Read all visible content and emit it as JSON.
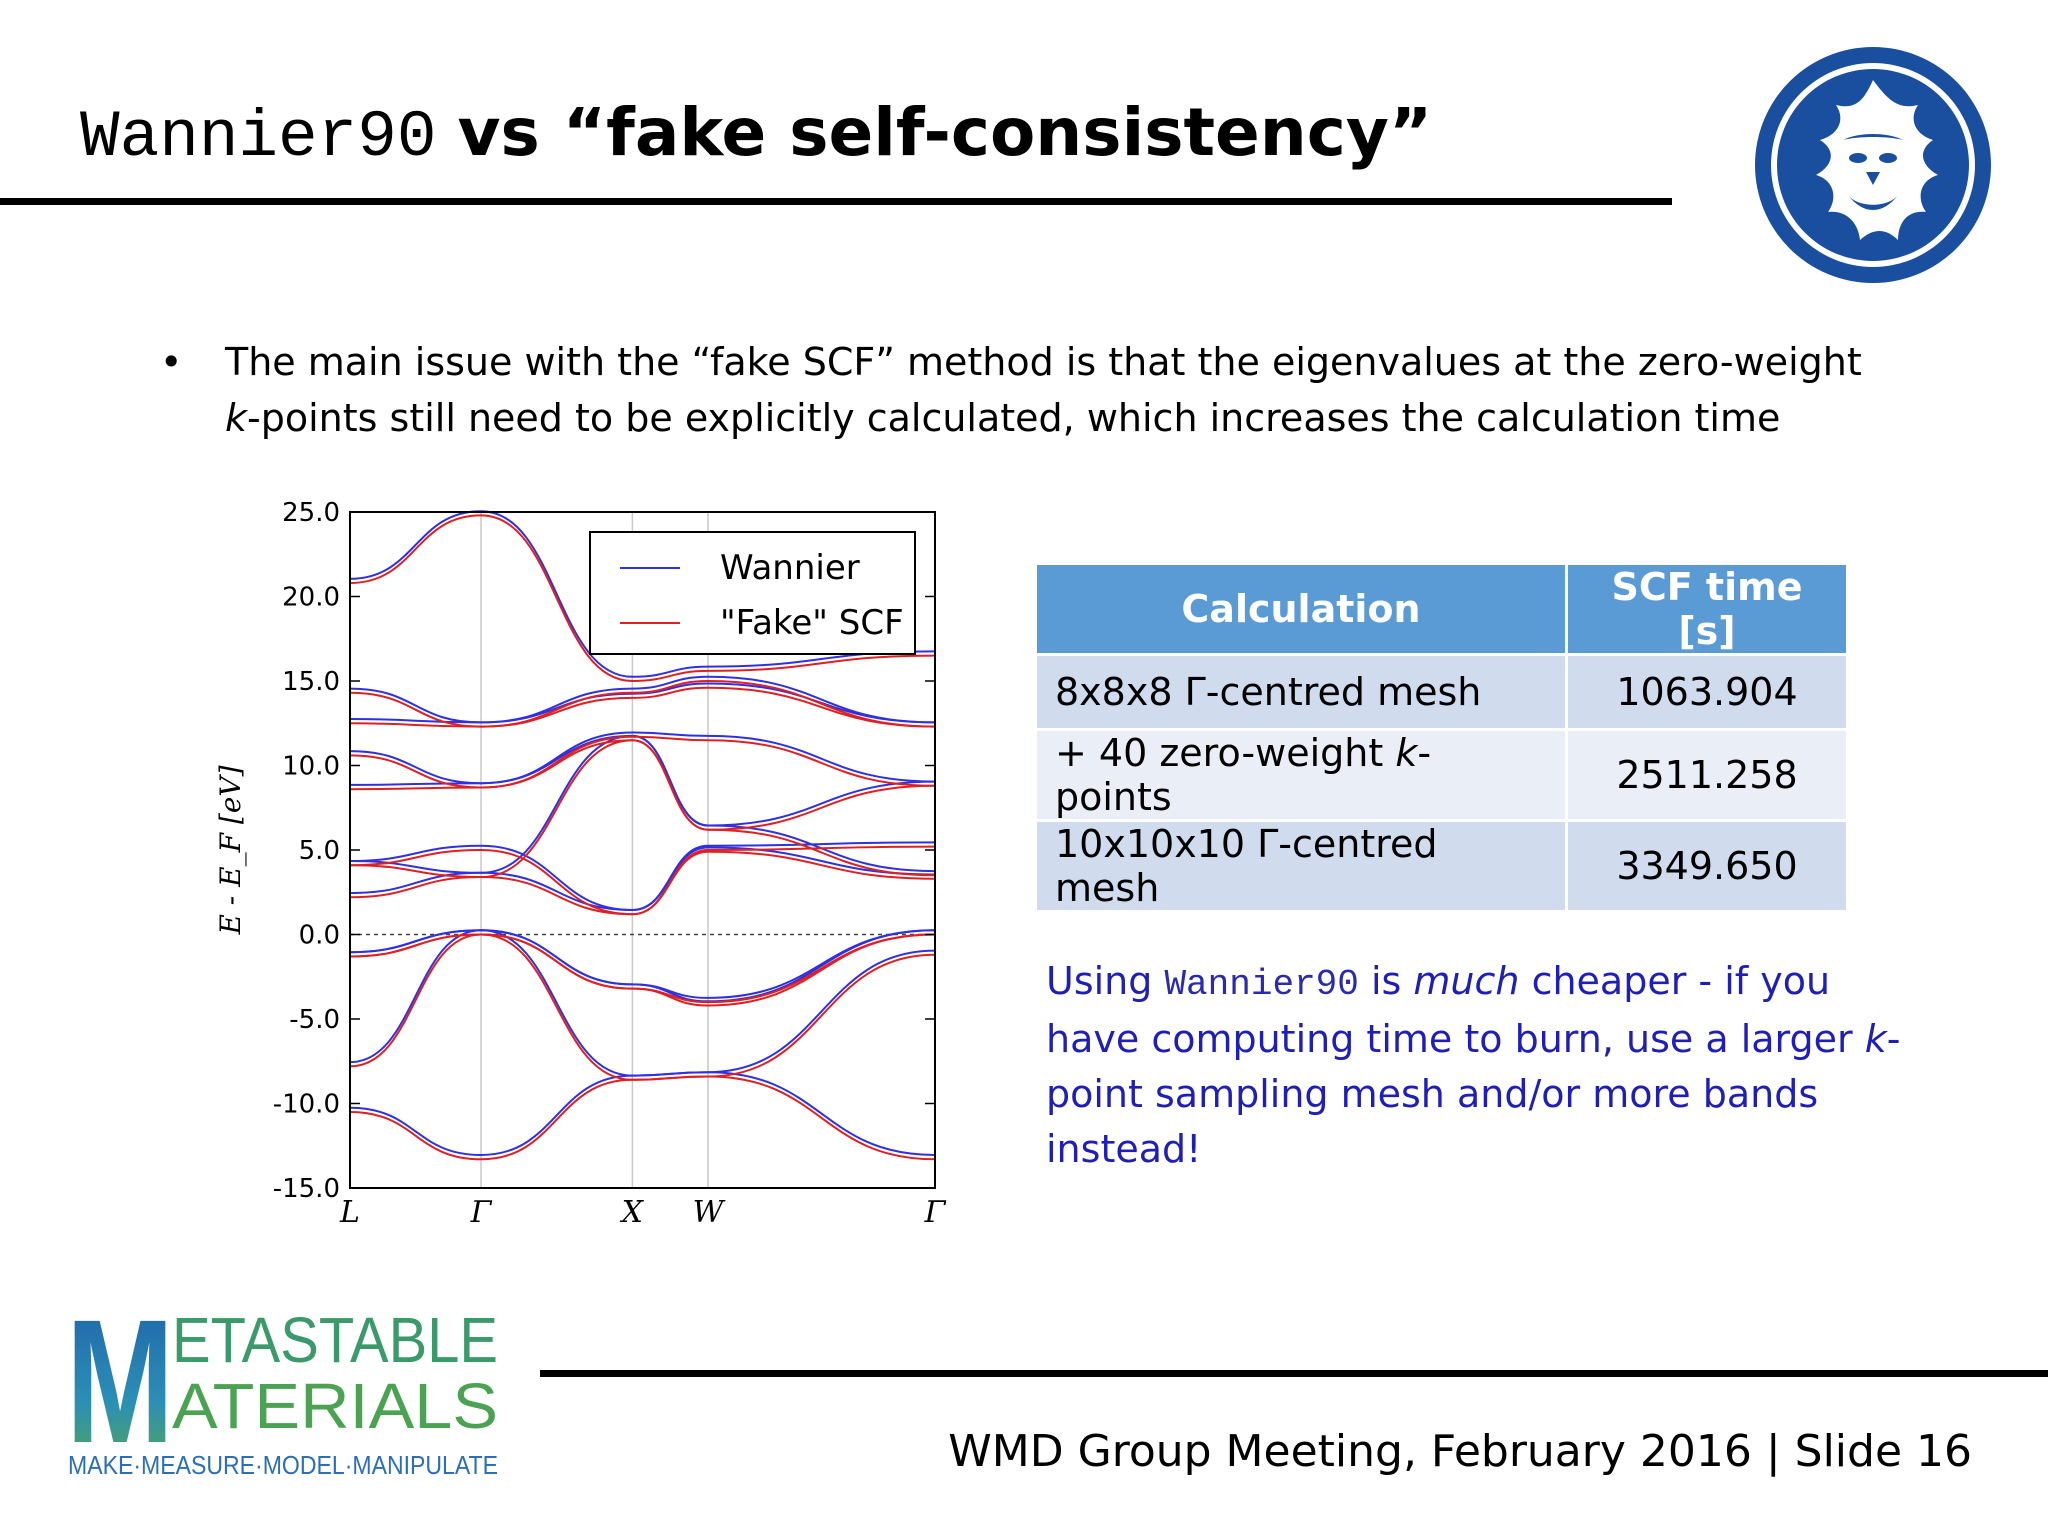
{
  "slide": {
    "title_mono": "Wannier90",
    "title_bold": "vs “fake self-consistency”",
    "bullet_symbol": "•",
    "bullet_text_1": "The main issue with the “fake SCF” method is that the eigenvalues at the zero-weight ",
    "bullet_text_k": "k",
    "bullet_text_2": "-points still need to be explicitly calculated, which increases the calculation time"
  },
  "table": {
    "headers": [
      "Calculation",
      "SCF time [s]"
    ],
    "rows": [
      {
        "calc": "8x8x8 Γ-centred mesh",
        "time": "1063.904"
      },
      {
        "calc_prefix": "+ 40 zero-weight ",
        "calc_k": "k",
        "calc_suffix": "-points",
        "time": "2511.258"
      },
      {
        "calc": "10x10x10 Γ-centred mesh",
        "time": "3349.650"
      }
    ]
  },
  "note": {
    "part1": "Using ",
    "mono": "Wannier90",
    "part2": " is ",
    "italic": "much",
    "part3": " cheaper - if you have computing time to burn, use a larger ",
    "k": "k",
    "part4": "-point sampling mesh and/or more bands instead!"
  },
  "footer": {
    "text": "WMD Group Meeting, February 2016 | Slide 16"
  },
  "logo": {
    "line1": "ETASTABLE",
    "line2": "ATERIALS",
    "big_letter": "M",
    "tagline": "MAKE·MEASURE·MODEL·MANIPULATE"
  },
  "colors": {
    "wannier": "#3030e0",
    "fake_scf": "#e02020",
    "table_header": "#5b9bd5",
    "note_text": "#1f1fb8"
  },
  "chart_data": {
    "type": "line",
    "title": "",
    "xlabel": "",
    "ylabel": "E - E_F [eV]",
    "ylim": [
      -15.0,
      25.0
    ],
    "yticks": [
      "25.0",
      "20.0",
      "15.0",
      "10.0",
      "5.0",
      "0.0",
      "-5.0",
      "-10.0",
      "-15.0"
    ],
    "ytick_values": [
      25,
      20,
      15,
      10,
      5,
      0,
      -5,
      -10,
      -15
    ],
    "xticks": [
      "L",
      "Γ",
      "X",
      "W",
      "Γ"
    ],
    "xtick_positions": [
      0,
      0.866,
      1.866,
      2.366,
      3.866
    ],
    "xlim": [
      0,
      3.866
    ],
    "legend": [
      {
        "name": "Wannier",
        "color": "#3030e0"
      },
      {
        "name": "\"Fake\" SCF",
        "color": "#e02020"
      }
    ],
    "legend_position": "top-right",
    "fermi_level": 0.0,
    "series": [
      {
        "name": "band1",
        "points": [
          [
            0,
            -10.5
          ],
          [
            0.866,
            -13.3
          ],
          [
            1.866,
            -8.6
          ],
          [
            2.366,
            -8.4
          ],
          [
            3.866,
            -13.3
          ]
        ]
      },
      {
        "name": "band2",
        "points": [
          [
            0,
            -7.8
          ],
          [
            0.866,
            0.0
          ],
          [
            1.866,
            -3.2
          ],
          [
            2.366,
            -4.2
          ],
          [
            3.866,
            0.0
          ]
        ]
      },
      {
        "name": "band3",
        "points": [
          [
            0,
            -1.3
          ],
          [
            0.866,
            0.0
          ],
          [
            1.866,
            -8.6
          ],
          [
            2.366,
            -8.4
          ],
          [
            3.866,
            -1.2
          ]
        ]
      },
      {
        "name": "band4",
        "points": [
          [
            0,
            -1.3
          ],
          [
            0.866,
            0.0
          ],
          [
            1.866,
            -3.2
          ],
          [
            2.366,
            -4.0
          ],
          [
            3.866,
            0.0
          ]
        ]
      },
      {
        "name": "band5",
        "points": [
          [
            0,
            2.2
          ],
          [
            0.866,
            3.4
          ],
          [
            1.866,
            1.2
          ],
          [
            2.366,
            4.9
          ],
          [
            3.866,
            3.3
          ]
        ]
      },
      {
        "name": "band6",
        "points": [
          [
            0,
            4.1
          ],
          [
            0.866,
            3.4
          ],
          [
            1.866,
            11.5
          ],
          [
            2.366,
            6.2
          ],
          [
            3.866,
            3.5
          ]
        ]
      },
      {
        "name": "band7",
        "points": [
          [
            0,
            4.1
          ],
          [
            0.866,
            5.0
          ],
          [
            1.866,
            1.2
          ],
          [
            2.366,
            5.0
          ],
          [
            3.866,
            5.2
          ]
        ]
      },
      {
        "name": "band8",
        "points": [
          [
            0,
            8.6
          ],
          [
            0.866,
            8.7
          ],
          [
            1.866,
            11.5
          ],
          [
            2.366,
            6.2
          ],
          [
            3.866,
            8.8
          ]
        ]
      },
      {
        "name": "band9",
        "points": [
          [
            0,
            10.6
          ],
          [
            0.866,
            8.7
          ],
          [
            1.866,
            11.7
          ],
          [
            2.366,
            11.5
          ],
          [
            3.866,
            8.8
          ]
        ]
      },
      {
        "name": "band10",
        "points": [
          [
            0,
            12.5
          ],
          [
            0.866,
            12.3
          ],
          [
            1.866,
            14.0
          ],
          [
            2.366,
            14.6
          ],
          [
            3.866,
            12.3
          ]
        ]
      },
      {
        "name": "band11",
        "points": [
          [
            0,
            14.3
          ],
          [
            0.866,
            12.3
          ],
          [
            1.866,
            14.3
          ],
          [
            2.366,
            15.0
          ],
          [
            3.866,
            12.3
          ]
        ]
      },
      {
        "name": "band12",
        "points": [
          [
            0,
            20.8
          ],
          [
            0.866,
            24.8
          ],
          [
            1.866,
            15.0
          ],
          [
            2.366,
            15.6
          ],
          [
            3.866,
            16.5
          ]
        ]
      }
    ]
  }
}
